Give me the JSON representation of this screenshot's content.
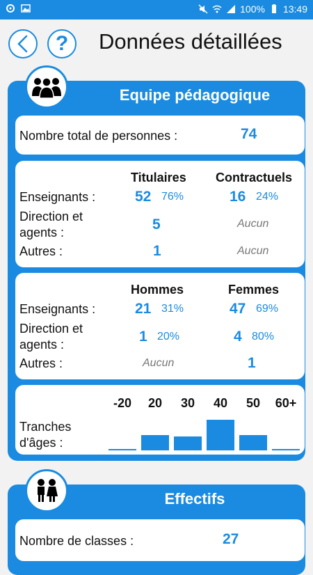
{
  "status_bar": {
    "battery": "100%",
    "time": "13:49"
  },
  "header": {
    "title": "Données détaillées",
    "help_label": "?"
  },
  "equipe": {
    "title": "Equipe pédagogique",
    "total": {
      "label": "Nombre total de personnes :",
      "value": "74"
    },
    "status_table": {
      "col1": "Titulaires",
      "col2": "Contractuels",
      "rows": [
        {
          "label": "Enseignants :",
          "c1_value": "52",
          "c1_pct": "76%",
          "c2_value": "16",
          "c2_pct": "24%"
        },
        {
          "label_line1": "Direction et",
          "label_line2": "agents :",
          "c1_value": "5",
          "c2_none": "Aucun"
        },
        {
          "label": "Autres :",
          "c1_value": "1",
          "c2_none": "Aucun"
        }
      ]
    },
    "gender_table": {
      "col1": "Hommes",
      "col2": "Femmes",
      "rows": [
        {
          "label": "Enseignants :",
          "c1_value": "21",
          "c1_pct": "31%",
          "c2_value": "47",
          "c2_pct": "69%"
        },
        {
          "label_line1": "Direction et",
          "label_line2": "agents :",
          "c1_value": "1",
          "c1_pct": "20%",
          "c2_value": "4",
          "c2_pct": "80%"
        },
        {
          "label": "Autres :",
          "c1_none": "Aucun",
          "c2_value": "1"
        }
      ]
    },
    "ages": {
      "label_line1": "Tranches",
      "label_line2": "d'âges :",
      "brackets": [
        "-20",
        "20",
        "30",
        "40",
        "50",
        "60+"
      ],
      "relative_levels": [
        0.05,
        0.5,
        0.45,
        1.0,
        0.5,
        0.05
      ]
    }
  },
  "effectifs": {
    "title": "Effectifs",
    "classes": {
      "label": "Nombre de classes :",
      "value": "27"
    }
  },
  "colors": {
    "primary": "#1a8be0",
    "background": "#f2f2f2"
  }
}
